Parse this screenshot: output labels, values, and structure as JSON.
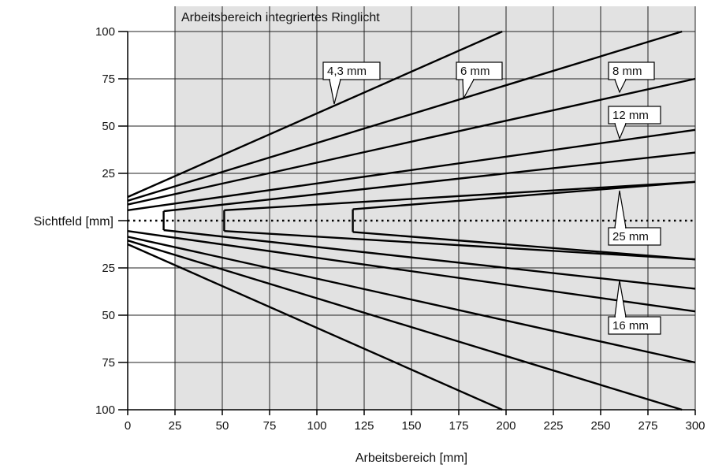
{
  "chart_data": {
    "type": "line",
    "title": "",
    "region_label": "Arbeitsbereich integriertes Ringlicht",
    "region_x_range": [
      25,
      300
    ],
    "xlabel": "Arbeitsbereich [mm]",
    "ylabel": "Sichtfeld [mm]",
    "xlim": [
      0,
      300
    ],
    "ylim": [
      -100,
      100
    ],
    "x_ticks": [
      0,
      25,
      50,
      75,
      100,
      125,
      150,
      175,
      200,
      225,
      250,
      275,
      300
    ],
    "y_ticks": [
      {
        "value": 100,
        "label": "100"
      },
      {
        "value": 75,
        "label": "75"
      },
      {
        "value": 50,
        "label": "50"
      },
      {
        "value": 25,
        "label": "25"
      },
      {
        "value": -25,
        "label": "25"
      },
      {
        "value": -50,
        "label": "50"
      },
      {
        "value": -75,
        "label": "75"
      },
      {
        "value": -100,
        "label": "100"
      }
    ],
    "grid": true,
    "centerline": "dotted",
    "series": [
      {
        "name": "4,3 mm",
        "x": [
          0,
          198
        ],
        "y": [
          12.5,
          100
        ],
        "mirrored": true
      },
      {
        "name": "6 mm",
        "x": [
          0,
          293
        ],
        "y": [
          10.5,
          100
        ],
        "mirrored": true
      },
      {
        "name": "8 mm",
        "x": [
          0,
          300
        ],
        "y": [
          8.5,
          75
        ],
        "mirrored": true
      },
      {
        "name": "12 mm",
        "x": [
          0,
          300
        ],
        "y": [
          5.5,
          48
        ],
        "mirrored": true
      },
      {
        "name": "16 mm",
        "x": [
          19,
          300
        ],
        "y": [
          5,
          36
        ],
        "mirrored": true
      },
      {
        "name": "",
        "x": [
          51,
          300
        ],
        "y": [
          5.5,
          20.5
        ],
        "mirrored": true
      },
      {
        "name": "25 mm",
        "x": [
          119,
          300
        ],
        "y": [
          6,
          20.5
        ],
        "mirrored": true
      }
    ],
    "callouts": [
      {
        "text": "4,3 mm"
      },
      {
        "text": "6 mm"
      },
      {
        "text": "8 mm"
      },
      {
        "text": "12 mm"
      },
      {
        "text": "25 mm"
      },
      {
        "text": "16 mm"
      }
    ],
    "colors": {
      "region": "#e2e2e2",
      "grid": "#222222",
      "lines": "#000000"
    }
  }
}
